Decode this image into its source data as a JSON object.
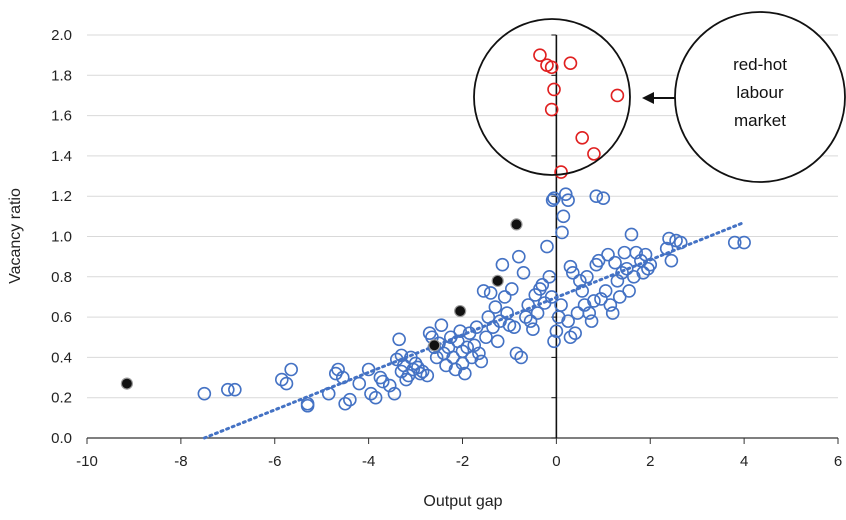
{
  "chart_data": {
    "type": "scatter",
    "xlabel": "Output gap",
    "ylabel": "Vacancy ratio",
    "xlim": [
      -10,
      6
    ],
    "ylim": [
      0,
      2.0
    ],
    "xticks": [
      "-10",
      "-8",
      "-6",
      "-4",
      "-2",
      "0",
      "2",
      "4",
      "6"
    ],
    "yticks": [
      "0.0",
      "0.2",
      "0.4",
      "0.6",
      "0.8",
      "1.0",
      "1.2",
      "1.4",
      "1.6",
      "1.8",
      "2.0"
    ],
    "grid": "horizontal",
    "colors": {
      "blue": "#4472c4",
      "red": "#e02020",
      "black": "#111111"
    },
    "series": [
      {
        "marker": "open-circle",
        "color": "#4472c4",
        "points": [
          [
            -7.5,
            0.22
          ],
          [
            -7.0,
            0.24
          ],
          [
            -6.85,
            0.24
          ],
          [
            -5.85,
            0.29
          ],
          [
            -5.75,
            0.27
          ],
          [
            -5.65,
            0.34
          ],
          [
            -5.3,
            0.17
          ],
          [
            -5.3,
            0.16
          ],
          [
            -4.85,
            0.22
          ],
          [
            -4.7,
            0.32
          ],
          [
            -4.65,
            0.34
          ],
          [
            -4.55,
            0.3
          ],
          [
            -4.5,
            0.17
          ],
          [
            -4.4,
            0.19
          ],
          [
            -4.2,
            0.27
          ],
          [
            -4.0,
            0.34
          ],
          [
            -3.95,
            0.22
          ],
          [
            -3.85,
            0.2
          ],
          [
            -3.75,
            0.3
          ],
          [
            -3.7,
            0.28
          ],
          [
            -3.55,
            0.26
          ],
          [
            -3.45,
            0.22
          ],
          [
            -3.4,
            0.39
          ],
          [
            -3.35,
            0.49
          ],
          [
            -3.3,
            0.41
          ],
          [
            -3.3,
            0.33
          ],
          [
            -3.25,
            0.36
          ],
          [
            -3.2,
            0.29
          ],
          [
            -3.15,
            0.31
          ],
          [
            -3.1,
            0.4
          ],
          [
            -3.05,
            0.34
          ],
          [
            -3.0,
            0.37
          ],
          [
            -2.95,
            0.35
          ],
          [
            -2.9,
            0.32
          ],
          [
            -2.85,
            0.33
          ],
          [
            -2.75,
            0.31
          ],
          [
            -2.7,
            0.52
          ],
          [
            -2.65,
            0.5
          ],
          [
            -2.6,
            0.45
          ],
          [
            -2.55,
            0.4
          ],
          [
            -2.5,
            0.47
          ],
          [
            -2.45,
            0.56
          ],
          [
            -2.4,
            0.42
          ],
          [
            -2.35,
            0.36
          ],
          [
            -2.3,
            0.45
          ],
          [
            -2.25,
            0.5
          ],
          [
            -2.2,
            0.4
          ],
          [
            -2.15,
            0.34
          ],
          [
            -2.1,
            0.48
          ],
          [
            -2.05,
            0.53
          ],
          [
            -2.0,
            0.37
          ],
          [
            -2.0,
            0.43
          ],
          [
            -1.95,
            0.32
          ],
          [
            -1.9,
            0.45
          ],
          [
            -1.85,
            0.52
          ],
          [
            -1.8,
            0.4
          ],
          [
            -1.75,
            0.46
          ],
          [
            -1.7,
            0.55
          ],
          [
            -1.65,
            0.42
          ],
          [
            -1.6,
            0.38
          ],
          [
            -1.55,
            0.73
          ],
          [
            -1.5,
            0.5
          ],
          [
            -1.45,
            0.6
          ],
          [
            -1.4,
            0.72
          ],
          [
            -1.35,
            0.55
          ],
          [
            -1.3,
            0.65
          ],
          [
            -1.25,
            0.48
          ],
          [
            -1.2,
            0.58
          ],
          [
            -1.15,
            0.86
          ],
          [
            -1.1,
            0.7
          ],
          [
            -1.05,
            0.62
          ],
          [
            -1.0,
            0.56
          ],
          [
            -0.95,
            0.74
          ],
          [
            -0.9,
            0.55
          ],
          [
            -0.85,
            0.42
          ],
          [
            -0.8,
            0.9
          ],
          [
            -0.75,
            0.4
          ],
          [
            -0.7,
            0.82
          ],
          [
            -0.65,
            0.6
          ],
          [
            -0.6,
            0.66
          ],
          [
            -0.55,
            0.58
          ],
          [
            -0.5,
            0.54
          ],
          [
            -0.45,
            0.71
          ],
          [
            -0.4,
            0.62
          ],
          [
            -0.35,
            0.74
          ],
          [
            -0.3,
            0.76
          ],
          [
            -0.25,
            0.67
          ],
          [
            -0.2,
            0.95
          ],
          [
            -0.15,
            0.8
          ],
          [
            -0.1,
            0.7
          ],
          [
            -0.08,
            1.18
          ],
          [
            -0.05,
            1.19
          ],
          [
            -0.05,
            0.48
          ],
          [
            0.0,
            0.53
          ],
          [
            0.05,
            0.6
          ],
          [
            0.1,
            0.66
          ],
          [
            0.12,
            1.02
          ],
          [
            0.15,
            1.1
          ],
          [
            0.2,
            1.21
          ],
          [
            0.25,
            1.18
          ],
          [
            0.25,
            0.58
          ],
          [
            0.3,
            0.85
          ],
          [
            0.3,
            0.5
          ],
          [
            0.35,
            0.82
          ],
          [
            0.4,
            0.52
          ],
          [
            0.45,
            0.62
          ],
          [
            0.5,
            0.78
          ],
          [
            0.55,
            0.73
          ],
          [
            0.6,
            0.66
          ],
          [
            0.65,
            0.8
          ],
          [
            0.7,
            0.62
          ],
          [
            0.75,
            0.58
          ],
          [
            0.8,
            0.68
          ],
          [
            0.85,
            0.86
          ],
          [
            0.85,
            1.2
          ],
          [
            0.9,
            0.88
          ],
          [
            0.95,
            0.69
          ],
          [
            1.0,
            1.19
          ],
          [
            1.05,
            0.73
          ],
          [
            1.1,
            0.91
          ],
          [
            1.15,
            0.66
          ],
          [
            1.2,
            0.62
          ],
          [
            1.25,
            0.87
          ],
          [
            1.3,
            0.78
          ],
          [
            1.35,
            0.7
          ],
          [
            1.4,
            0.82
          ],
          [
            1.45,
            0.92
          ],
          [
            1.5,
            0.84
          ],
          [
            1.55,
            0.73
          ],
          [
            1.6,
            1.01
          ],
          [
            1.65,
            0.8
          ],
          [
            1.7,
            0.92
          ],
          [
            1.8,
            0.88
          ],
          [
            1.85,
            0.82
          ],
          [
            1.9,
            0.91
          ],
          [
            1.95,
            0.84
          ],
          [
            2.0,
            0.86
          ],
          [
            2.35,
            0.94
          ],
          [
            2.4,
            0.99
          ],
          [
            2.45,
            0.88
          ],
          [
            2.55,
            0.98
          ],
          [
            2.65,
            0.97
          ],
          [
            3.8,
            0.97
          ],
          [
            4.0,
            0.97
          ]
        ]
      },
      {
        "marker": "open-circle",
        "color": "#e02020",
        "points": [
          [
            -0.35,
            1.9
          ],
          [
            -0.2,
            1.85
          ],
          [
            -0.1,
            1.84
          ],
          [
            -0.05,
            1.73
          ],
          [
            -0.1,
            1.63
          ],
          [
            0.3,
            1.86
          ],
          [
            1.3,
            1.7
          ],
          [
            0.55,
            1.49
          ],
          [
            0.8,
            1.41
          ],
          [
            0.1,
            1.32
          ]
        ]
      },
      {
        "marker": "filled-circle",
        "color": "#111111",
        "points": [
          [
            -9.15,
            0.27
          ],
          [
            -2.6,
            0.46
          ],
          [
            -2.05,
            0.63
          ],
          [
            -1.25,
            0.78
          ],
          [
            -0.85,
            1.06
          ]
        ]
      }
    ],
    "trendline": {
      "style": "dotted",
      "color": "#4472c4",
      "x": [
        -7.5,
        4.0
      ],
      "y": [
        0.0,
        1.07
      ]
    },
    "vertical_line_x": 0,
    "annotation": {
      "text_lines": [
        "red-hot",
        "labour",
        "market"
      ]
    }
  }
}
